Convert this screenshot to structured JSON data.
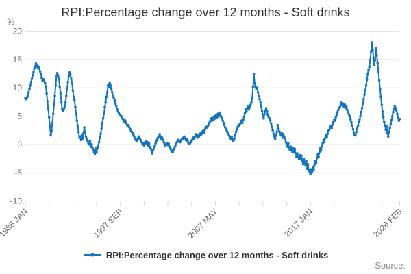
{
  "title": "RPI:Percentage change over 12 months - Soft drinks",
  "legend": {
    "label": "RPI:Percentage change over 12 months - Soft drinks"
  },
  "source": {
    "label": "Source:"
  },
  "colors": {
    "line": "#1475bc",
    "grid": "#e6e6e6",
    "axis": "#ccd7e4",
    "tick_text": "#666666",
    "title_text": "#333333"
  },
  "y_axis": {
    "unit": "%",
    "ticks": [
      20,
      15,
      10,
      5,
      0,
      -5,
      -10
    ]
  },
  "x_axis": {
    "tick_labels": [
      "1988 JAN",
      "1997 SEP",
      "2007 MAY",
      "2017 JAN",
      "2026 FEB"
    ]
  },
  "chart_data": {
    "type": "line",
    "title": "RPI:Percentage change over 12 months - Soft drinks",
    "ylabel": "%",
    "ylim": [
      -10,
      20
    ],
    "y_ticks": [
      20,
      15,
      10,
      5,
      0,
      -5,
      -10
    ],
    "grid": "horizontal-only",
    "legend_position": "bottom-center",
    "frequency": "monthly",
    "x_start": "1988 JAN",
    "x_end": "2026 FEB",
    "x_ticks": [
      {
        "month": 0,
        "label": "1988 JAN"
      },
      {
        "month": 29
      },
      {
        "month": 58
      },
      {
        "month": 87
      },
      {
        "month": 116,
        "label": "1997 SEP"
      },
      {
        "month": 145
      },
      {
        "month": 174
      },
      {
        "month": 203
      },
      {
        "month": 232,
        "label": "2007 MAY"
      },
      {
        "month": 261
      },
      {
        "month": 290
      },
      {
        "month": 319
      },
      {
        "month": 348,
        "label": "2017 JAN"
      },
      {
        "month": 377
      },
      {
        "month": 406
      },
      {
        "month": 435
      },
      {
        "month": 457,
        "label": "2026 FEB"
      }
    ],
    "series": [
      {
        "name": "RPI:Percentage change over 12 months - Soft drinks",
        "start": "1988 JAN",
        "values": [
          8.2,
          8.0,
          8.3,
          8.6,
          9.2,
          9.8,
          10.4,
          11.0,
          11.6,
          12.2,
          12.8,
          13.4,
          13.8,
          14.3,
          13.7,
          13.9,
          13.4,
          13.6,
          12.9,
          12.4,
          11.7,
          11.2,
          11.5,
          11.2,
          10.9,
          10.2,
          9.0,
          7.6,
          6.2,
          4.8,
          3.2,
          1.6,
          2.4,
          3.8,
          5.4,
          7.0,
          8.6,
          10.4,
          12.0,
          12.6,
          12.2,
          11.6,
          10.2,
          9.0,
          7.4,
          6.2,
          5.9,
          6.2,
          6.6,
          7.4,
          8.6,
          9.9,
          11.0,
          12.0,
          12.7,
          12.3,
          11.6,
          10.9,
          9.5,
          8.4,
          7.8,
          6.6,
          5.4,
          4.2,
          3.2,
          2.2,
          1.2,
          1.4,
          0.8,
          1.6,
          1.0,
          2.0,
          3.0,
          2.0,
          1.4,
          1.0,
          0.6,
          0.2,
          0.0,
          0.6,
          -0.4,
          0.0,
          -0.6,
          -1.0,
          -1.4,
          -1.7,
          -0.7,
          -1.4,
          -0.6,
          -0.2,
          0.4,
          1.2,
          1.9,
          2.8,
          3.8,
          4.6,
          5.4,
          6.6,
          7.4,
          8.4,
          9.2,
          10.5,
          10.2,
          10.9,
          10.4,
          9.8,
          9.2,
          8.6,
          8.2,
          7.8,
          7.2,
          6.8,
          6.3,
          5.9,
          5.6,
          5.3,
          5.1,
          5.0,
          4.7,
          4.5,
          4.3,
          4.0,
          4.2,
          3.8,
          3.5,
          3.2,
          3.4,
          3.0,
          2.7,
          2.4,
          2.2,
          2.0,
          1.7,
          1.4,
          1.0,
          0.8,
          0.6,
          0.9,
          1.2,
          1.4,
          1.0,
          0.7,
          0.4,
          0.1,
          0.2,
          -0.2,
          0.3,
          0.6,
          0.1,
          0.4,
          -0.3,
          0.2,
          -0.5,
          -0.7,
          -1.1,
          -1.6,
          -1.0,
          -0.6,
          -0.2,
          0.2,
          0.6,
          0.9,
          1.2,
          1.4,
          1.8,
          1.4,
          1.0,
          1.2,
          0.8,
          0.4,
          0.1,
          -0.2,
          0.0,
          0.2,
          -0.1,
          0.1,
          -0.4,
          -0.7,
          -1.0,
          -1.3,
          -1.3,
          -0.9,
          -0.7,
          -0.3,
          0.1,
          0.4,
          0.6,
          0.8,
          0.5,
          0.4,
          0.7,
          0.9,
          1.0,
          1.2,
          1.4,
          1.1,
          0.8,
          0.9,
          0.6,
          0.3,
          0.1,
          0.2,
          0.4,
          0.6,
          0.9,
          1.2,
          1.0,
          1.4,
          1.8,
          1.5,
          1.2,
          1.6,
          1.4,
          1.7,
          2.0,
          1.8,
          2.2,
          2.4,
          2.1,
          2.6,
          2.9,
          3.1,
          3.0,
          3.3,
          3.6,
          3.9,
          4.2,
          4.6,
          4.2,
          4.7,
          4.4,
          5.0,
          4.6,
          5.2,
          4.8,
          5.4,
          5.0,
          5.6,
          5.2,
          4.9,
          4.6,
          4.2,
          3.8,
          3.4,
          3.0,
          2.7,
          2.4,
          2.1,
          1.8,
          1.5,
          1.2,
          1.0,
          1.4,
          0.9,
          0.6,
          1.0,
          1.6,
          2.2,
          2.6,
          3.0,
          3.4,
          3.2,
          3.6,
          3.9,
          4.2,
          3.8,
          4.4,
          4.9,
          5.5,
          6.2,
          5.8,
          6.4,
          6.8,
          6.2,
          6.6,
          7.0,
          7.4,
          8.2,
          10.2,
          12.4,
          10.8,
          10.2,
          9.8,
          10.0,
          9.2,
          8.6,
          8.0,
          7.4,
          6.6,
          5.9,
          5.0,
          4.6,
          5.4,
          6.0,
          6.4,
          5.9,
          5.2,
          4.9,
          4.6,
          4.2,
          3.7,
          3.1,
          2.5,
          1.9,
          1.4,
          1.0,
          1.6,
          2.2,
          3.4,
          2.8,
          2.3,
          1.9,
          1.6,
          2.0,
          1.2,
          1.8,
          1.4,
          1.0,
          0.4,
          0.1,
          -0.4,
          0.2,
          -0.6,
          -1.0,
          -0.4,
          -0.9,
          -1.3,
          -0.7,
          -1.4,
          -0.8,
          -1.6,
          -2.2,
          -1.6,
          -2.1,
          -2.5,
          -1.9,
          -2.6,
          -2.0,
          -2.9,
          -3.5,
          -2.6,
          -3.2,
          -3.7,
          -2.9,
          -4.3,
          -3.5,
          -4.5,
          -4.8,
          -5.2,
          -4.4,
          -4.9,
          -4.1,
          -4.5,
          -3.6,
          -2.9,
          -3.3,
          -2.4,
          -1.8,
          -2.2,
          -1.4,
          -0.7,
          -1.1,
          -0.3,
          0.2,
          0.8,
          0.4,
          1.1,
          1.6,
          1.3,
          1.9,
          2.4,
          2.6,
          3.0,
          3.3,
          2.9,
          3.5,
          4.0,
          4.4,
          4.2,
          4.8,
          5.2,
          5.7,
          6.1,
          6.4,
          6.6,
          7.0,
          7.4,
          6.9,
          7.2,
          6.6,
          7.0,
          6.4,
          6.7,
          6.1,
          5.7,
          5.3,
          5.0,
          4.4,
          3.9,
          3.3,
          2.7,
          2.1,
          1.7,
          1.6,
          2.2,
          2.8,
          3.3,
          3.9,
          4.4,
          5.0,
          5.7,
          6.4,
          7.2,
          8.0,
          8.8,
          9.6,
          10.4,
          11.4,
          12.5,
          13.2,
          13.7,
          14.9,
          16.4,
          18.0,
          16.7,
          15.3,
          14.0,
          14.9,
          17.0,
          15.7,
          14.4,
          12.9,
          11.3,
          9.8,
          8.4,
          7.0,
          5.8,
          4.8,
          4.0,
          3.3,
          2.6,
          3.2,
          2.0,
          1.4,
          2.2,
          2.9,
          3.6,
          4.3,
          5.0,
          5.7,
          6.3,
          6.8,
          6.4,
          6.0,
          5.4,
          4.8,
          4.2,
          4.5
        ]
      }
    ]
  }
}
